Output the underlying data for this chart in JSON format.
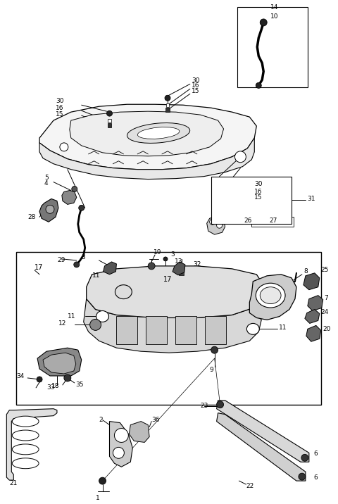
{
  "bg_color": "#ffffff",
  "lc": "#000000",
  "figsize": [
    4.8,
    7.16
  ],
  "dpi": 100,
  "fs": 6.5,
  "fw": "normal"
}
